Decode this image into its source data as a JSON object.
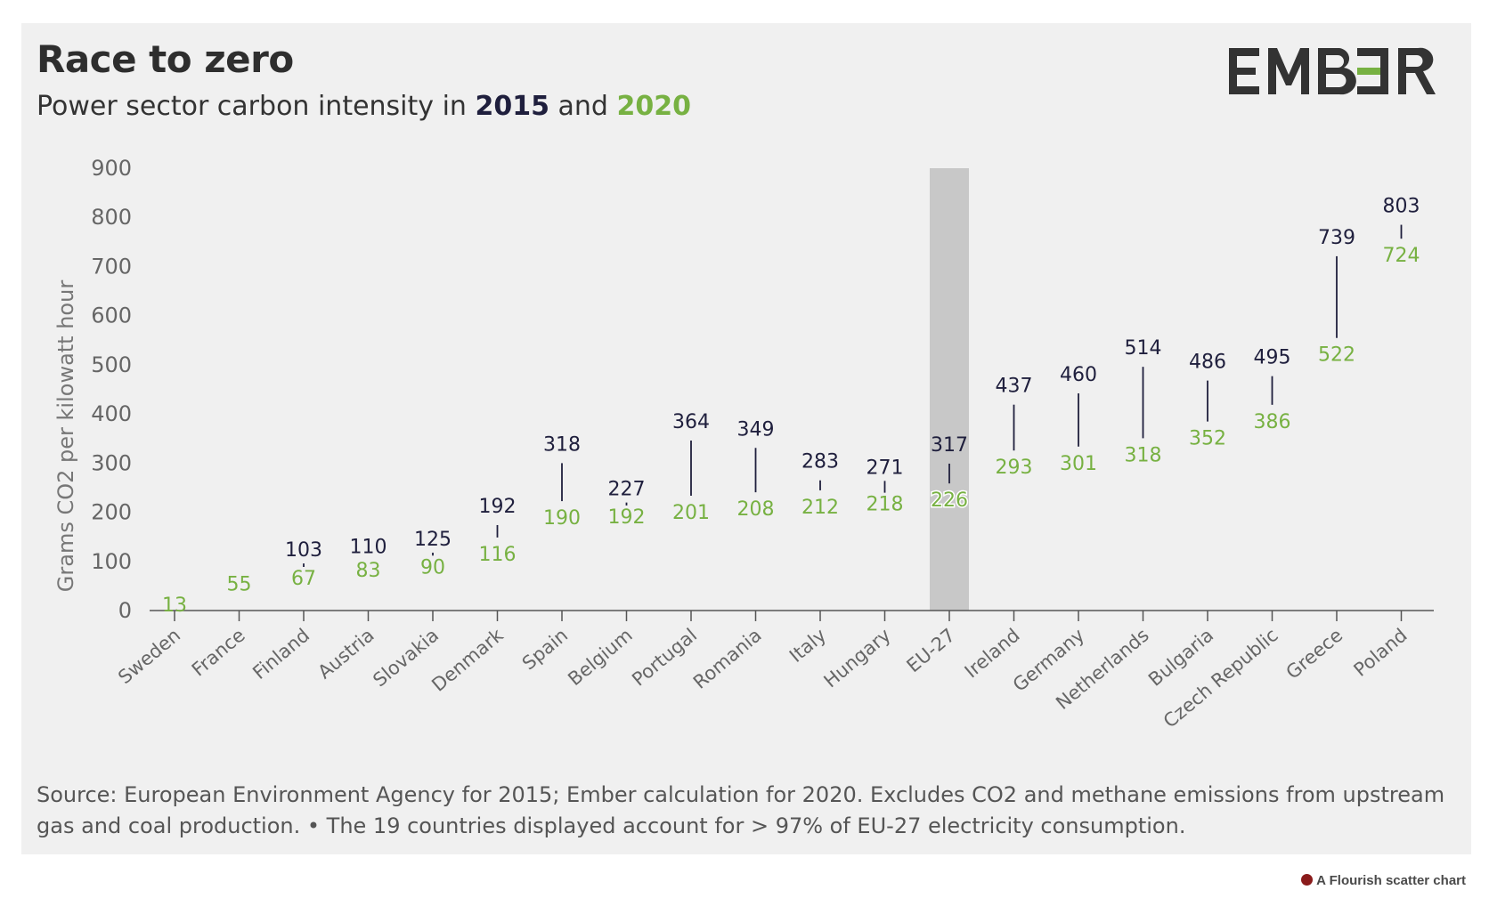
{
  "header": {
    "title": "Race to zero",
    "subtitle_prefix": "Power sector carbon intensity in",
    "subtitle_year1": "2015",
    "subtitle_and": "and",
    "subtitle_year2": "2020"
  },
  "logo": {
    "text": "EMBER",
    "icon": "ember-logo"
  },
  "colors": {
    "series_2015": "#1f1f3d",
    "series_2020": "#77b142",
    "highlight_band": "#c8c8c8",
    "background": "#f0f0f0"
  },
  "chart_data": {
    "type": "scatter",
    "title": "Race to zero",
    "subtitle": "Power sector carbon intensity in 2015 and 2020",
    "ylabel": "Grams CO2 per kilowatt hour",
    "xlabel": "",
    "ylim": [
      0,
      900
    ],
    "yticks": [
      0,
      100,
      200,
      300,
      400,
      500,
      600,
      700,
      800,
      900
    ],
    "highlight_category": "EU-27",
    "categories": [
      "Sweden",
      "France",
      "Finland",
      "Austria",
      "Slovakia",
      "Denmark",
      "Spain",
      "Belgium",
      "Portugal",
      "Romania",
      "Italy",
      "Hungary",
      "EU-27",
      "Ireland",
      "Germany",
      "Netherlands",
      "Bulgaria",
      "Czech Republic",
      "Greece",
      "Poland"
    ],
    "series": [
      {
        "name": "2015",
        "values": [
          13,
          55,
          103,
          110,
          125,
          192,
          318,
          227,
          364,
          349,
          283,
          271,
          317,
          437,
          460,
          514,
          486,
          495,
          739,
          803
        ]
      },
      {
        "name": "2020",
        "values": [
          13,
          55,
          67,
          83,
          90,
          116,
          190,
          192,
          201,
          208,
          212,
          218,
          226,
          293,
          301,
          318,
          352,
          386,
          522,
          724
        ]
      }
    ],
    "labels_2015": [
      "",
      "",
      "103",
      "110",
      "125",
      "192",
      "318",
      "227",
      "364",
      "349",
      "283",
      "271",
      "317",
      "437",
      "460",
      "514",
      "486",
      "495",
      "739",
      "803"
    ],
    "labels_2020": [
      "13",
      "55",
      "67",
      "83",
      "90",
      "116",
      "190",
      "192",
      "201",
      "208",
      "212",
      "218",
      "226",
      "293",
      "301",
      "318",
      "352",
      "386",
      "522",
      "724"
    ],
    "grid": false
  },
  "footer": {
    "source": "Source: European Environment Agency for 2015; Ember calculation for 2020. Excludes CO2 and methane emissions from upstream gas and coal production. • The 19 countries displayed account for > 97% of EU-27 electricity consumption.",
    "credit": "A Flourish scatter chart"
  }
}
